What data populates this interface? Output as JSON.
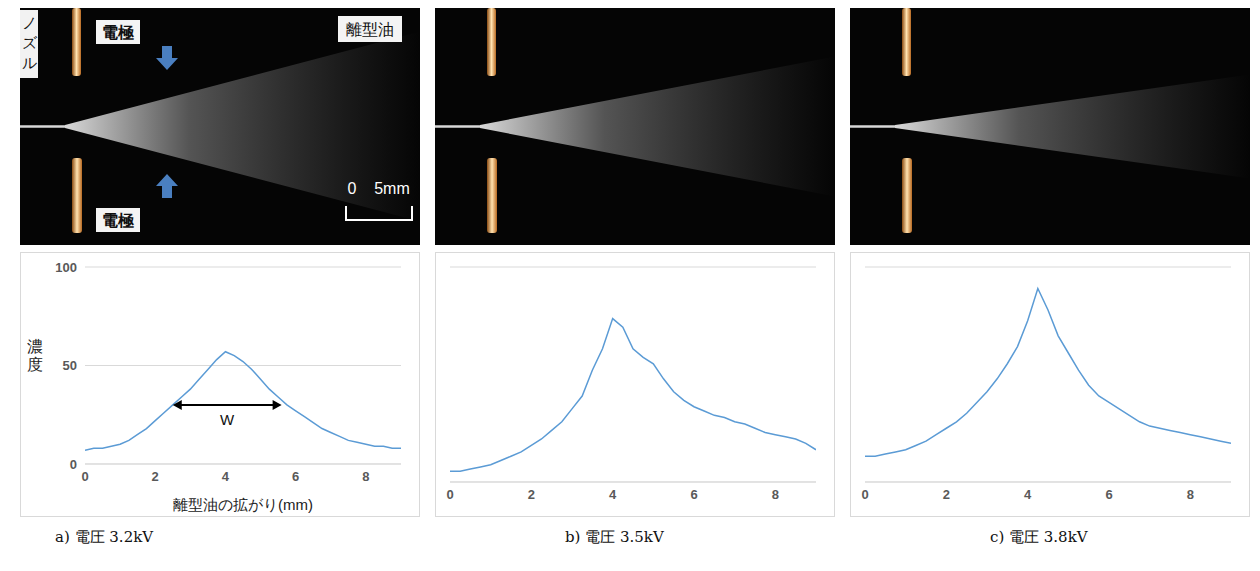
{
  "photo_labels": {
    "nozzle": "ノズル",
    "electrodes": [
      "電極",
      "電極"
    ],
    "oil": "離型油",
    "scale_bar": [
      "0",
      "5mm"
    ]
  },
  "chart_data": [
    {
      "type": "line",
      "title": "a) 電圧 3.2kV",
      "x_label": "離型油の拡がり(mm)",
      "y_label": "濃度",
      "x": [
        0,
        0.25,
        0.5,
        0.75,
        1,
        1.25,
        1.5,
        1.75,
        2,
        2.25,
        2.5,
        2.75,
        3,
        3.25,
        3.5,
        3.75,
        4,
        4.25,
        4.5,
        4.75,
        5,
        5.25,
        5.5,
        5.75,
        6,
        6.25,
        6.5,
        6.75,
        7,
        7.25,
        7.5,
        7.75,
        8,
        8.25,
        8.5,
        8.75,
        9
      ],
      "values": [
        7,
        8,
        8,
        9,
        10,
        12,
        15,
        18,
        22,
        26,
        30,
        34,
        38,
        43,
        48,
        53,
        57,
        55,
        52,
        48,
        43,
        38,
        34,
        30,
        27,
        24,
        21,
        18,
        16,
        14,
        12,
        11,
        10,
        9,
        9,
        8,
        8
      ],
      "color": "#5b9bd5",
      "xlim": [
        0,
        9
      ],
      "xticks": [
        0,
        2,
        4,
        6,
        8
      ],
      "ylim": [
        0,
        100
      ],
      "yticks": [
        0,
        50,
        100
      ],
      "grid": true,
      "annotation": {
        "text": "W",
        "x": [
          2.5,
          5.6
        ],
        "y": 30
      }
    },
    {
      "type": "line",
      "title": "b) 電圧 3.5kV",
      "x": [
        0,
        0.25,
        0.5,
        0.75,
        1,
        1.25,
        1.5,
        1.75,
        2,
        2.25,
        2.5,
        2.75,
        3,
        3.25,
        3.5,
        3.75,
        4,
        4.25,
        4.5,
        4.75,
        5,
        5.25,
        5.5,
        5.75,
        6,
        6.25,
        6.5,
        6.75,
        7,
        7.25,
        7.5,
        7.75,
        8,
        8.25,
        8.5,
        8.75,
        9
      ],
      "values": [
        5,
        5,
        6,
        7,
        8,
        10,
        12,
        14,
        17,
        20,
        24,
        28,
        34,
        40,
        52,
        62,
        76,
        72,
        62,
        58,
        55,
        48,
        42,
        38,
        35,
        33,
        31,
        30,
        28,
        27,
        25,
        23,
        22,
        21,
        20,
        18,
        15
      ],
      "color": "#5b9bd5",
      "xlim": [
        0,
        9
      ],
      "xticks": [
        0,
        2,
        4,
        6,
        8
      ],
      "ylim": [
        0,
        100
      ],
      "yticks": [
        0,
        50,
        100
      ],
      "grid": true,
      "tick_labels": "x"
    },
    {
      "type": "line",
      "title": "c) 電圧 3.8kV",
      "x": [
        0,
        0.25,
        0.5,
        0.75,
        1,
        1.25,
        1.5,
        1.75,
        2,
        2.25,
        2.5,
        2.75,
        3,
        3.25,
        3.5,
        3.75,
        4,
        4.25,
        4.5,
        4.75,
        5,
        5.25,
        5.5,
        5.75,
        6,
        6.25,
        6.5,
        6.75,
        7,
        7.25,
        7.5,
        7.75,
        8,
        8.25,
        8.5,
        8.75,
        9
      ],
      "values": [
        12,
        12,
        13,
        14,
        15,
        17,
        19,
        22,
        25,
        28,
        32,
        37,
        42,
        48,
        55,
        63,
        75,
        90,
        80,
        68,
        60,
        52,
        45,
        40,
        37,
        34,
        31,
        28,
        26,
        25,
        24,
        23,
        22,
        21,
        20,
        19,
        18
      ],
      "color": "#5b9bd5",
      "xlim": [
        0,
        9
      ],
      "xticks": [
        0,
        2,
        4,
        6,
        8
      ],
      "ylim": [
        0,
        100
      ],
      "yticks": [
        0,
        50,
        100
      ],
      "grid": true,
      "tick_labels": "x"
    }
  ]
}
